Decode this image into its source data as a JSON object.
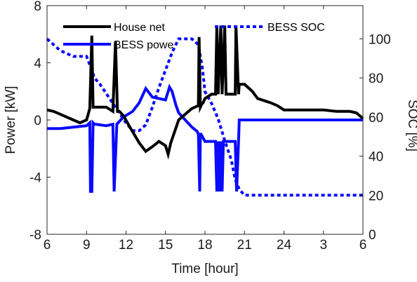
{
  "chart_data": {
    "type": "line",
    "xlabel": "Time [hour]",
    "ylabel_left": "Power [kW]",
    "ylabel_right": "SOC [%]",
    "x_tick_labels": [
      "6",
      "9",
      "12",
      "15",
      "18",
      "21",
      "24",
      "3",
      "6"
    ],
    "x_range_hours": [
      6,
      30
    ],
    "y_left_range": [
      -8,
      8
    ],
    "y_left_ticks": [
      -8,
      -4,
      0,
      4,
      8
    ],
    "y_right_range": [
      0,
      117
    ],
    "y_right_ticks": [
      0,
      20,
      40,
      60,
      80,
      100
    ],
    "grid": false,
    "legend_position": "top",
    "series": [
      {
        "name": "House net",
        "axis": "left",
        "color": "#000000",
        "style": "solid",
        "x": [
          6,
          6.5,
          7,
          7.5,
          8,
          8.5,
          9,
          9.25,
          9.4,
          9.5,
          9.65,
          9.8,
          10.5,
          11,
          11.2,
          11.35,
          11.5,
          11.8,
          12.3,
          13,
          13.5,
          14.1,
          14.5,
          15,
          15.2,
          15.4,
          15.7,
          16,
          16.5,
          17,
          17.5,
          17.55,
          17.65,
          17.75,
          17.85,
          18,
          18.5,
          18.8,
          18.9,
          19.0,
          19.2,
          19.3,
          19.5,
          19.6,
          19.8,
          20.3,
          20.35,
          20.55,
          20.6,
          21,
          21.6,
          22,
          23,
          23.5,
          24,
          25,
          26,
          27,
          28,
          28.5,
          29,
          29.5,
          30
        ],
        "y": [
          0.7,
          0.6,
          0.4,
          0.2,
          0.0,
          -0.2,
          0.0,
          0.8,
          5.9,
          0.9,
          0.9,
          0.9,
          0.9,
          0.6,
          5.5,
          0.6,
          0.6,
          0.3,
          -0.5,
          -1.6,
          -2.2,
          -1.8,
          -1.5,
          -1.8,
          -2.4,
          -1.6,
          -0.8,
          0.0,
          0.4,
          0.8,
          1.0,
          5.8,
          0.9,
          1.1,
          1.2,
          1.5,
          1.8,
          1.8,
          6.6,
          1.8,
          6.6,
          1.8,
          6.6,
          1.8,
          1.8,
          1.8,
          6.6,
          1.8,
          2.5,
          2.5,
          2.0,
          1.5,
          1.2,
          1.0,
          0.7,
          0.7,
          0.7,
          0.7,
          0.6,
          0.6,
          0.6,
          0.5,
          0.1
        ]
      },
      {
        "name": "BESS powe",
        "axis": "left",
        "color": "#0a0aff",
        "style": "solid",
        "x": [
          6,
          7,
          8,
          9,
          9.25,
          9.3,
          9.4,
          9.5,
          9.6,
          9.7,
          10.5,
          11,
          11.1,
          11.3,
          11.5,
          11.8,
          12.5,
          13,
          13.5,
          14,
          14.5,
          15,
          15.3,
          15.5,
          15.8,
          16,
          17,
          17.4,
          17.5,
          17.6,
          17.65,
          17.7,
          18,
          18.2,
          18.8,
          18.9,
          19.0,
          19.1,
          19.2,
          19.3,
          19.4,
          19.5,
          19.6,
          19.7,
          19.8,
          20.3,
          20.4,
          20.55,
          20.6,
          21,
          22,
          23,
          24,
          25,
          26,
          27,
          28,
          29,
          30
        ],
        "y": [
          -0.6,
          -0.6,
          -0.5,
          -0.4,
          -0.2,
          -5.0,
          -5.0,
          -0.2,
          -0.3,
          -0.3,
          -0.4,
          -0.3,
          -5.0,
          -0.3,
          -0.1,
          0.2,
          0.6,
          1.2,
          2.2,
          1.6,
          1.5,
          1.4,
          2.3,
          2.0,
          1.0,
          0.5,
          -0.5,
          -0.8,
          -1.0,
          -5.0,
          -1.0,
          -1.0,
          -1.5,
          -1.5,
          -1.5,
          -5.0,
          -1.5,
          -5.0,
          -1.5,
          -5.0,
          -1.5,
          -1.5,
          -1.5,
          -1.5,
          -1.5,
          -1.5,
          -5.0,
          -1.5,
          0.0,
          0.0,
          0.0,
          0.0,
          0.0,
          0.0,
          0.0,
          0.0,
          0.0,
          0.0,
          0.0
        ]
      },
      {
        "name": "BESS SOC",
        "axis": "right",
        "color": "#0a0aff",
        "style": "dotted",
        "x": [
          6,
          6.5,
          7,
          8,
          9,
          9.4,
          9.6,
          10,
          10.5,
          11,
          11.5,
          12,
          12.5,
          13,
          13.5,
          14,
          14.5,
          15,
          15.5,
          16,
          17,
          17.5,
          17.8,
          18,
          18.5,
          19,
          19.5,
          20,
          20.3,
          20.6,
          21,
          22,
          24,
          26,
          28,
          30
        ],
        "y": [
          100,
          97,
          94,
          91,
          91,
          84,
          80,
          77,
          72,
          67,
          62,
          57,
          53,
          53,
          56,
          65,
          75,
          84,
          93,
          100,
          100,
          97,
          85,
          73,
          67,
          59,
          48,
          38,
          28,
          23,
          20,
          20,
          20,
          20,
          20,
          20
        ]
      }
    ]
  }
}
